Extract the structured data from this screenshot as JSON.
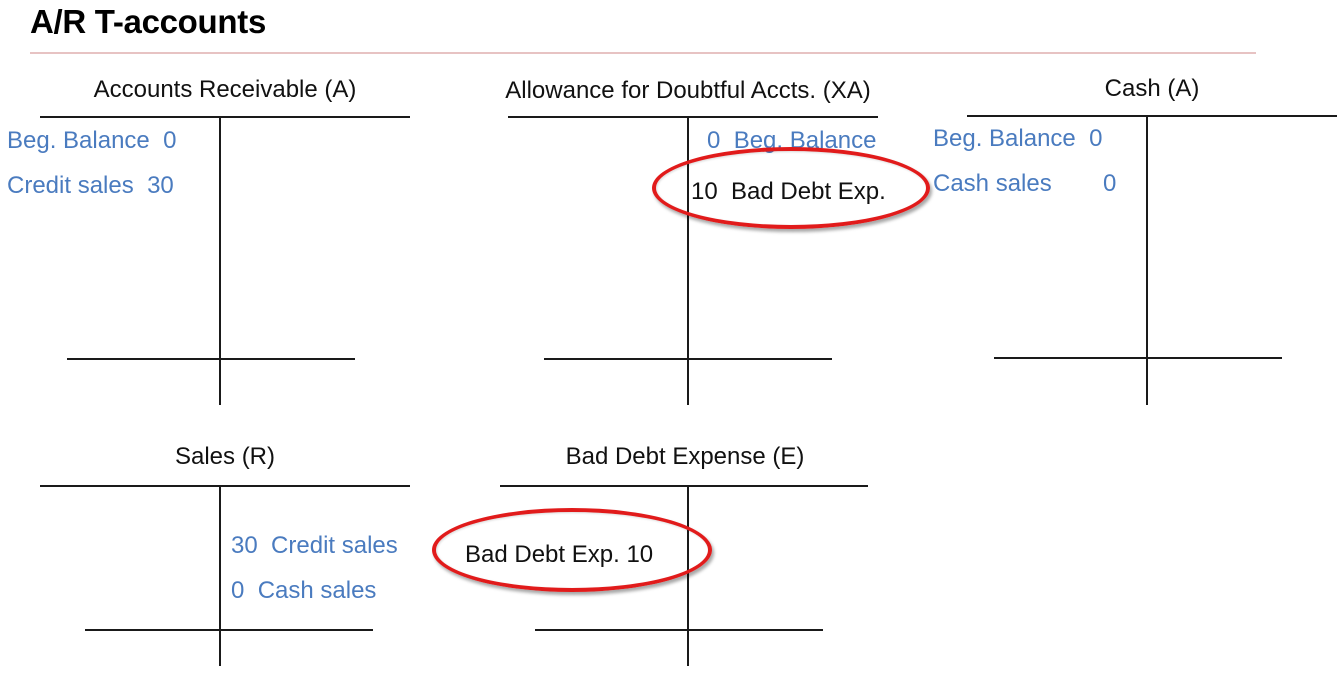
{
  "title": "A/R T-accounts",
  "accounts": [
    {
      "name": "Accounts Receivable (A)",
      "debits": [
        {
          "label": "Beg. Balance",
          "amount": "0"
        },
        {
          "label": "Credit sales",
          "amount": "30"
        }
      ],
      "credits": []
    },
    {
      "name": "Allowance for Doubtful Accts. (XA)",
      "debits": [],
      "credits": [
        {
          "amount": "0",
          "label": "Beg. Balance"
        },
        {
          "amount": "10",
          "label": "Bad Debt Exp.",
          "highlighted": true
        }
      ]
    },
    {
      "name": "Cash (A)",
      "debits": [
        {
          "label": "Beg. Balance",
          "amount": "0"
        },
        {
          "label": "Cash sales",
          "amount": "0"
        }
      ],
      "credits": []
    },
    {
      "name": "Sales (R)",
      "debits": [],
      "credits": [
        {
          "amount": "30",
          "label": "Credit sales"
        },
        {
          "amount": "0",
          "label": "Cash sales"
        }
      ]
    },
    {
      "name": "Bad Debt Expense (E)",
      "debits": [
        {
          "label": "Bad Debt Exp.",
          "amount": "10",
          "highlighted": true
        }
      ],
      "credits": []
    }
  ],
  "colors": {
    "entry_text": "#4a7bbf",
    "highlight_circle": "#e11b1b",
    "title_rule": "#e7c3c3"
  }
}
